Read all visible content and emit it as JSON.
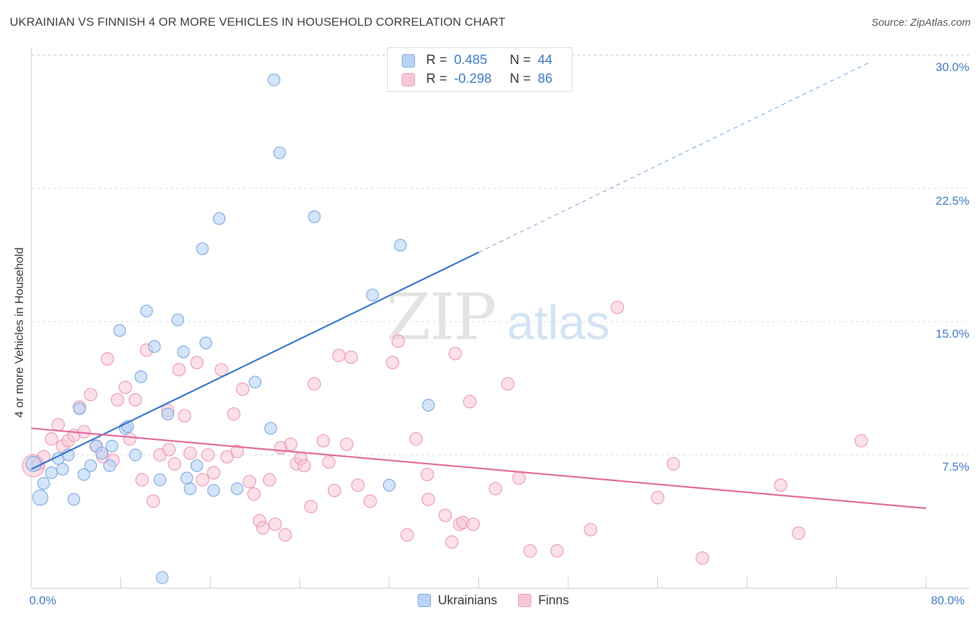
{
  "title": "UKRAINIAN VS FINNISH 4 OR MORE VEHICLES IN HOUSEHOLD CORRELATION CHART",
  "source": "Source: ZipAtlas.com",
  "watermark": {
    "zip": "ZIP",
    "atlas": "atlas"
  },
  "legend_top": [
    {
      "r_label": "R =",
      "r_value": "0.485",
      "n_label": "N =",
      "n_value": "44"
    },
    {
      "r_label": "R =",
      "r_value": "-0.298",
      "n_label": "N =",
      "n_value": "86"
    }
  ],
  "legend_bottom": [
    "Ukrainians",
    "Finns"
  ],
  "colors": {
    "ukrainians_fill": "#b9d3f5",
    "ukrainians_stroke": "#7fa9e0",
    "ukrainians_line": "#2f72c9",
    "finns_fill": "#f8c7d7",
    "finns_stroke": "#ec9ab6",
    "finns_line": "#e2649a",
    "grid": "#dddddd",
    "tick_text": "#3a78c4"
  },
  "chart_data": {
    "type": "scatter",
    "title": "UKRAINIAN VS FINNISH 4 OR MORE VEHICLES IN HOUSEHOLD CORRELATION CHART",
    "xlabel": "",
    "ylabel": "4 or more Vehicles in Household",
    "xlim": [
      0,
      80
    ],
    "ylim": [
      0,
      30
    ],
    "x_tick_labels": [
      "0.0%",
      "80.0%"
    ],
    "y_ticks": [
      7.5,
      15.0,
      22.5,
      30.0
    ],
    "y_tick_labels": [
      "7.5%",
      "15.0%",
      "22.5%",
      "30.0%"
    ],
    "grid": true,
    "series": [
      {
        "name": "Ukrainians",
        "r": 0.485,
        "n": 44,
        "trend": {
          "x": [
            0,
            40
          ],
          "y": [
            6.7,
            18.9
          ],
          "extended_to": [
            75,
            29.6
          ]
        },
        "points": [
          [
            0.2,
            7.0
          ],
          [
            0.8,
            5.1
          ],
          [
            1.1,
            5.9
          ],
          [
            1.8,
            6.5
          ],
          [
            2.4,
            7.3
          ],
          [
            2.8,
            6.7
          ],
          [
            3.3,
            7.5
          ],
          [
            3.8,
            5.0
          ],
          [
            4.3,
            10.1
          ],
          [
            4.7,
            6.4
          ],
          [
            5.3,
            6.9
          ],
          [
            5.8,
            8.0
          ],
          [
            6.3,
            7.6
          ],
          [
            7.0,
            6.9
          ],
          [
            7.2,
            8.0
          ],
          [
            7.9,
            14.5
          ],
          [
            8.4,
            9.0
          ],
          [
            8.6,
            9.1
          ],
          [
            9.3,
            7.5
          ],
          [
            9.8,
            11.9
          ],
          [
            10.3,
            15.6
          ],
          [
            11.0,
            13.6
          ],
          [
            11.5,
            6.1
          ],
          [
            11.7,
            0.6
          ],
          [
            12.2,
            9.8
          ],
          [
            13.1,
            15.1
          ],
          [
            13.6,
            13.3
          ],
          [
            13.9,
            6.2
          ],
          [
            14.2,
            5.6
          ],
          [
            14.8,
            6.9
          ],
          [
            15.3,
            19.1
          ],
          [
            15.6,
            13.8
          ],
          [
            16.3,
            5.5
          ],
          [
            16.8,
            20.8
          ],
          [
            18.4,
            5.6
          ],
          [
            20.0,
            11.6
          ],
          [
            21.4,
            9.0
          ],
          [
            21.7,
            28.6
          ],
          [
            22.2,
            24.5
          ],
          [
            25.3,
            20.9
          ],
          [
            30.5,
            16.5
          ],
          [
            32.0,
            5.8
          ],
          [
            33.0,
            19.3
          ],
          [
            35.5,
            10.3
          ]
        ]
      },
      {
        "name": "Finns",
        "r": -0.298,
        "n": 86,
        "trend": {
          "x": [
            0,
            80
          ],
          "y": [
            9.0,
            4.5
          ]
        },
        "points": [
          [
            0.2,
            6.9
          ],
          [
            0.6,
            7.0
          ],
          [
            1.1,
            7.4
          ],
          [
            1.8,
            8.4
          ],
          [
            2.4,
            9.2
          ],
          [
            2.8,
            8.0
          ],
          [
            3.3,
            8.3
          ],
          [
            3.8,
            8.6
          ],
          [
            4.3,
            10.2
          ],
          [
            4.7,
            8.8
          ],
          [
            5.3,
            10.9
          ],
          [
            5.8,
            8.0
          ],
          [
            6.4,
            7.4
          ],
          [
            6.8,
            12.9
          ],
          [
            7.3,
            7.2
          ],
          [
            7.7,
            10.6
          ],
          [
            8.4,
            11.3
          ],
          [
            8.8,
            8.4
          ],
          [
            9.3,
            10.6
          ],
          [
            9.9,
            6.1
          ],
          [
            10.3,
            13.4
          ],
          [
            10.9,
            4.9
          ],
          [
            11.5,
            7.5
          ],
          [
            12.2,
            10.0
          ],
          [
            12.3,
            7.8
          ],
          [
            12.8,
            7.0
          ],
          [
            13.2,
            12.3
          ],
          [
            13.7,
            9.7
          ],
          [
            14.2,
            7.6
          ],
          [
            14.8,
            12.7
          ],
          [
            15.3,
            6.1
          ],
          [
            15.8,
            7.5
          ],
          [
            16.3,
            6.5
          ],
          [
            17.0,
            12.3
          ],
          [
            17.5,
            7.4
          ],
          [
            18.1,
            9.8
          ],
          [
            18.4,
            7.7
          ],
          [
            18.9,
            11.2
          ],
          [
            19.5,
            6.0
          ],
          [
            19.9,
            5.3
          ],
          [
            20.4,
            3.8
          ],
          [
            20.7,
            3.4
          ],
          [
            21.3,
            6.1
          ],
          [
            21.8,
            3.6
          ],
          [
            22.3,
            7.9
          ],
          [
            22.7,
            3.0
          ],
          [
            23.2,
            8.1
          ],
          [
            23.7,
            7.0
          ],
          [
            24.1,
            7.3
          ],
          [
            24.4,
            6.9
          ],
          [
            25.0,
            4.6
          ],
          [
            25.3,
            11.5
          ],
          [
            26.1,
            8.3
          ],
          [
            26.6,
            7.1
          ],
          [
            27.1,
            5.5
          ],
          [
            27.5,
            13.1
          ],
          [
            28.2,
            8.1
          ],
          [
            28.6,
            13.0
          ],
          [
            29.2,
            5.8
          ],
          [
            30.3,
            4.9
          ],
          [
            32.3,
            12.7
          ],
          [
            32.8,
            13.9
          ],
          [
            33.6,
            3.0
          ],
          [
            34.4,
            8.4
          ],
          [
            35.4,
            6.4
          ],
          [
            35.5,
            5.0
          ],
          [
            37.0,
            4.1
          ],
          [
            37.6,
            2.6
          ],
          [
            37.9,
            13.2
          ],
          [
            38.3,
            3.6
          ],
          [
            38.6,
            3.7
          ],
          [
            39.2,
            10.5
          ],
          [
            39.5,
            3.6
          ],
          [
            41.5,
            5.6
          ],
          [
            42.6,
            11.5
          ],
          [
            43.6,
            6.2
          ],
          [
            44.6,
            2.1
          ],
          [
            47.0,
            2.1
          ],
          [
            50.0,
            3.3
          ],
          [
            52.4,
            15.8
          ],
          [
            56.0,
            5.1
          ],
          [
            57.4,
            7.0
          ],
          [
            60.0,
            1.7
          ],
          [
            67.0,
            5.8
          ],
          [
            68.6,
            3.1
          ],
          [
            74.2,
            8.3
          ]
        ]
      }
    ]
  }
}
